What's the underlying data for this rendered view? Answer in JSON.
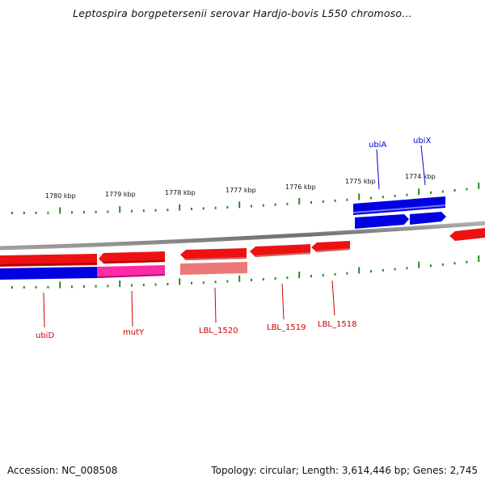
{
  "title": "Leptospira borgpetersenii serovar Hardjo-bovis L550 chromoso...",
  "ticks": [
    "1780 kbp",
    "1779 kbp",
    "1778 kbp",
    "1777 kbp",
    "1776 kbp",
    "1775 kbp",
    "1774 kbp"
  ],
  "genes_top": [
    "ubiA",
    "ubiX"
  ],
  "genes_bottom": [
    "ubiD",
    "mutY",
    "LBL_1520",
    "LBL_1519",
    "LBL_1518"
  ],
  "colors": {
    "forward_gene": "#0000e0",
    "reverse_gene": "#ee1111",
    "magenta_gene": "#ff2aa8",
    "faded_gene": "#ee7777",
    "tick": "#228B22",
    "backbone": "#808080",
    "label_blue": "#0000cc",
    "label_red": "#cc0000"
  },
  "footer": {
    "accession": "Accession: NC_008508",
    "topology": "Topology: circular; Length: 3,614,446 bp; Genes: 2,745"
  }
}
